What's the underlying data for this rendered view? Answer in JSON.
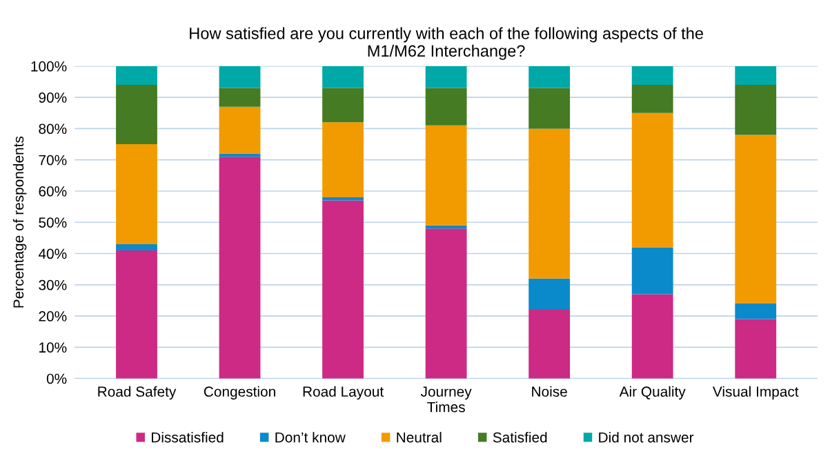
{
  "chart_data": {
    "type": "bar",
    "stacked": true,
    "title": "How satisfied are you currently with each of the following aspects of the\nM1/M62 Interchange?",
    "ylabel": "Percentage of respondents",
    "categories": [
      "Road Safety",
      "Congestion",
      "Road Layout",
      "Journey\nTimes",
      "Noise",
      "Air Quality",
      "Visual Impact"
    ],
    "series": [
      {
        "name": "Dissatisfied",
        "color": "#cc2a84",
        "values": [
          41,
          71,
          57,
          48,
          22,
          27,
          19
        ]
      },
      {
        "name": "Don’t know",
        "color": "#0a8acb",
        "values": [
          2,
          1,
          1,
          1,
          10,
          15,
          5
        ]
      },
      {
        "name": "Neutral",
        "color": "#f29b00",
        "values": [
          32,
          15,
          24,
          32,
          48,
          43,
          54
        ]
      },
      {
        "name": "Satisfied",
        "color": "#457b22",
        "values": [
          19,
          6,
          11,
          12,
          13,
          9,
          16
        ]
      },
      {
        "name": "Did not answer",
        "color": "#00a8a8",
        "values": [
          6,
          7,
          7,
          7,
          7,
          6,
          6
        ]
      }
    ],
    "ylim": [
      0,
      100
    ],
    "yticks": [
      {
        "value": 0,
        "label": "0%"
      },
      {
        "value": 10,
        "label": "10%"
      },
      {
        "value": 20,
        "label": "20%"
      },
      {
        "value": 30,
        "label": "30%"
      },
      {
        "value": 40,
        "label": "40%"
      },
      {
        "value": 50,
        "label": "50%"
      },
      {
        "value": 60,
        "label": "60%"
      },
      {
        "value": 70,
        "label": "70%"
      },
      {
        "value": 80,
        "label": "80%"
      },
      {
        "value": 90,
        "label": "90%"
      },
      {
        "value": 100,
        "label": "100%"
      }
    ],
    "grid": "y",
    "legend": "bottom"
  }
}
